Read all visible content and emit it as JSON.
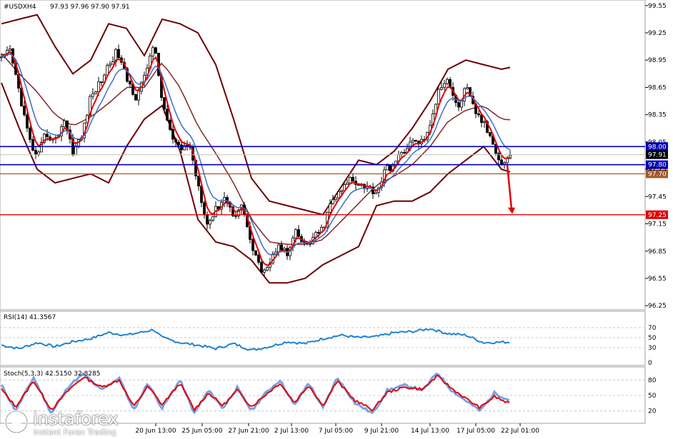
{
  "chart_data": {
    "type": "line",
    "symbol_header": "#USDXH4",
    "ohlc_header": "97.93 97.96 97.90 97.91",
    "price_ticks": [
      "99.55",
      "99.25",
      "98.95",
      "98.65",
      "98.35",
      "98.05",
      "97.75",
      "97.45",
      "97.15",
      "96.85",
      "96.55",
      "96.25"
    ],
    "ylim": [
      96.22,
      99.58
    ],
    "x_ticks": [
      "20 Jun 13:00",
      "25 Jun 05:00",
      "27 Jun 21:00",
      "2 Jul 13:00",
      "7 Jul 05:00",
      "9 Jul 21:00",
      "14 Jul 13:00",
      "17 Jul 05:00",
      "22 Jul 01:00"
    ],
    "levels": [
      {
        "value": 98.0,
        "label": "98.00",
        "color": "#0000c0"
      },
      {
        "value": 97.8,
        "label": "97.80",
        "color": "#0000c0"
      },
      {
        "value": 97.7,
        "label": "97.70",
        "color": "#a05a2c"
      },
      {
        "value": 97.25,
        "label": "97.25",
        "color": "#e00000"
      }
    ],
    "current_price": {
      "value": 97.91,
      "label": "97.91"
    },
    "price_anchors": [
      [
        0,
        98.95
      ],
      [
        12,
        99.05
      ],
      [
        25,
        98.6
      ],
      [
        38,
        98.1
      ],
      [
        50,
        97.85
      ],
      [
        62,
        98.15
      ],
      [
        75,
        98.05
      ],
      [
        88,
        98.3
      ],
      [
        100,
        97.95
      ],
      [
        112,
        98.1
      ],
      [
        125,
        98.55
      ],
      [
        138,
        98.7
      ],
      [
        150,
        98.9
      ],
      [
        162,
        99.05
      ],
      [
        175,
        98.75
      ],
      [
        188,
        98.55
      ],
      [
        200,
        98.75
      ],
      [
        213,
        99.15
      ],
      [
        225,
        98.5
      ],
      [
        238,
        98.1
      ],
      [
        250,
        97.95
      ],
      [
        262,
        98.05
      ],
      [
        275,
        97.6
      ],
      [
        288,
        97.15
      ],
      [
        300,
        97.3
      ],
      [
        312,
        97.45
      ],
      [
        325,
        97.25
      ],
      [
        338,
        97.35
      ],
      [
        350,
        96.9
      ],
      [
        362,
        96.65
      ],
      [
        375,
        96.7
      ],
      [
        388,
        96.95
      ],
      [
        400,
        96.8
      ],
      [
        412,
        97.05
      ],
      [
        425,
        96.9
      ],
      [
        438,
        97.0
      ],
      [
        450,
        97.1
      ],
      [
        462,
        97.4
      ],
      [
        475,
        97.5
      ],
      [
        488,
        97.65
      ],
      [
        500,
        97.6
      ],
      [
        512,
        97.55
      ],
      [
        525,
        97.5
      ],
      [
        538,
        97.75
      ],
      [
        550,
        97.8
      ],
      [
        562,
        97.95
      ],
      [
        575,
        98.05
      ],
      [
        588,
        98.05
      ],
      [
        600,
        98.2
      ],
      [
        612,
        98.65
      ],
      [
        625,
        98.75
      ],
      [
        638,
        98.4
      ],
      [
        650,
        98.65
      ],
      [
        662,
        98.4
      ],
      [
        675,
        98.25
      ],
      [
        688,
        98.05
      ],
      [
        700,
        97.8
      ],
      [
        712,
        97.91
      ]
    ],
    "upper_band_anchors": [
      [
        0,
        99.35
      ],
      [
        25,
        99.4
      ],
      [
        50,
        99.45
      ],
      [
        75,
        99.1
      ],
      [
        100,
        98.8
      ],
      [
        125,
        98.95
      ],
      [
        150,
        99.35
      ],
      [
        175,
        99.3
      ],
      [
        200,
        99.0
      ],
      [
        225,
        99.4
      ],
      [
        250,
        99.35
      ],
      [
        275,
        99.25
      ],
      [
        300,
        98.9
      ],
      [
        325,
        98.3
      ],
      [
        350,
        97.65
      ],
      [
        375,
        97.4
      ],
      [
        400,
        97.35
      ],
      [
        425,
        97.3
      ],
      [
        450,
        97.25
      ],
      [
        475,
        97.55
      ],
      [
        500,
        97.85
      ],
      [
        525,
        97.8
      ],
      [
        550,
        97.95
      ],
      [
        575,
        98.2
      ],
      [
        600,
        98.5
      ],
      [
        625,
        98.85
      ],
      [
        650,
        98.95
      ],
      [
        675,
        98.9
      ],
      [
        700,
        98.85
      ],
      [
        712,
        98.87
      ]
    ],
    "lower_band_anchors": [
      [
        0,
        98.7
      ],
      [
        25,
        98.2
      ],
      [
        50,
        97.75
      ],
      [
        75,
        97.6
      ],
      [
        100,
        97.65
      ],
      [
        125,
        97.7
      ],
      [
        150,
        97.6
      ],
      [
        175,
        98.0
      ],
      [
        200,
        98.3
      ],
      [
        225,
        98.45
      ],
      [
        250,
        97.95
      ],
      [
        275,
        97.2
      ],
      [
        300,
        96.95
      ],
      [
        325,
        96.9
      ],
      [
        350,
        96.75
      ],
      [
        375,
        96.5
      ],
      [
        400,
        96.5
      ],
      [
        425,
        96.55
      ],
      [
        450,
        96.7
      ],
      [
        475,
        96.8
      ],
      [
        500,
        96.9
      ],
      [
        525,
        97.35
      ],
      [
        550,
        97.4
      ],
      [
        575,
        97.4
      ],
      [
        600,
        97.5
      ],
      [
        625,
        97.7
      ],
      [
        650,
        97.85
      ],
      [
        675,
        98.0
      ],
      [
        700,
        97.75
      ],
      [
        712,
        97.72
      ]
    ],
    "rsi": {
      "label": "RSI(14) 41.3567",
      "ticks": [
        "70",
        "50",
        "30",
        "0"
      ],
      "ylim": [
        0,
        100
      ],
      "anchors": [
        [
          0,
          35
        ],
        [
          25,
          28
        ],
        [
          50,
          40
        ],
        [
          75,
          32
        ],
        [
          100,
          42
        ],
        [
          125,
          48
        ],
        [
          150,
          60
        ],
        [
          175,
          55
        ],
        [
          200,
          62
        ],
        [
          213,
          66
        ],
        [
          225,
          50
        ],
        [
          250,
          40
        ],
        [
          275,
          35
        ],
        [
          300,
          28
        ],
        [
          325,
          38
        ],
        [
          350,
          25
        ],
        [
          375,
          32
        ],
        [
          400,
          42
        ],
        [
          425,
          38
        ],
        [
          450,
          48
        ],
        [
          475,
          55
        ],
        [
          500,
          50
        ],
        [
          525,
          52
        ],
        [
          550,
          60
        ],
        [
          575,
          62
        ],
        [
          600,
          68
        ],
        [
          625,
          58
        ],
        [
          650,
          55
        ],
        [
          675,
          40
        ],
        [
          700,
          41
        ],
        [
          712,
          41
        ]
      ]
    },
    "stoch": {
      "label": "Stoch(5,3,3) 42.5150 32.8285",
      "ticks": [
        "80",
        "50",
        "20"
      ],
      "ylim": [
        0,
        100
      ],
      "main_anchors": [
        [
          0,
          70
        ],
        [
          20,
          20
        ],
        [
          45,
          85
        ],
        [
          70,
          15
        ],
        [
          95,
          70
        ],
        [
          115,
          92
        ],
        [
          140,
          60
        ],
        [
          165,
          85
        ],
        [
          185,
          20
        ],
        [
          205,
          75
        ],
        [
          225,
          25
        ],
        [
          250,
          80
        ],
        [
          270,
          15
        ],
        [
          290,
          60
        ],
        [
          310,
          25
        ],
        [
          330,
          65
        ],
        [
          350,
          20
        ],
        [
          370,
          55
        ],
        [
          390,
          80
        ],
        [
          410,
          30
        ],
        [
          430,
          75
        ],
        [
          450,
          25
        ],
        [
          470,
          85
        ],
        [
          495,
          35
        ],
        [
          520,
          15
        ],
        [
          540,
          60
        ],
        [
          565,
          70
        ],
        [
          590,
          60
        ],
        [
          610,
          95
        ],
        [
          630,
          60
        ],
        [
          650,
          40
        ],
        [
          670,
          20
        ],
        [
          690,
          55
        ],
        [
          712,
          40
        ]
      ],
      "signal_anchors": [
        [
          0,
          62
        ],
        [
          20,
          28
        ],
        [
          45,
          78
        ],
        [
          70,
          22
        ],
        [
          95,
          62
        ],
        [
          115,
          86
        ],
        [
          140,
          66
        ],
        [
          165,
          80
        ],
        [
          185,
          28
        ],
        [
          205,
          68
        ],
        [
          225,
          32
        ],
        [
          250,
          74
        ],
        [
          270,
          22
        ],
        [
          290,
          55
        ],
        [
          310,
          30
        ],
        [
          330,
          60
        ],
        [
          350,
          28
        ],
        [
          370,
          52
        ],
        [
          390,
          74
        ],
        [
          410,
          36
        ],
        [
          430,
          70
        ],
        [
          450,
          30
        ],
        [
          470,
          78
        ],
        [
          495,
          40
        ],
        [
          520,
          22
        ],
        [
          540,
          56
        ],
        [
          565,
          66
        ],
        [
          590,
          62
        ],
        [
          610,
          88
        ],
        [
          630,
          64
        ],
        [
          650,
          44
        ],
        [
          670,
          26
        ],
        [
          690,
          48
        ],
        [
          712,
          33
        ]
      ]
    },
    "projection": {
      "from": 97.75,
      "to": 97.25
    },
    "logo": {
      "name": "instaforex",
      "tagline": "Instant Forex Trading"
    },
    "colors": {
      "candles": "#000000",
      "bands": "#6b0000",
      "fast_ma": "#e00000",
      "slow_ma": "#3a6fc4",
      "rsi": "#1e82d2",
      "stoch_main": "#7aa0e0",
      "stoch_signal": "#e00000"
    }
  }
}
